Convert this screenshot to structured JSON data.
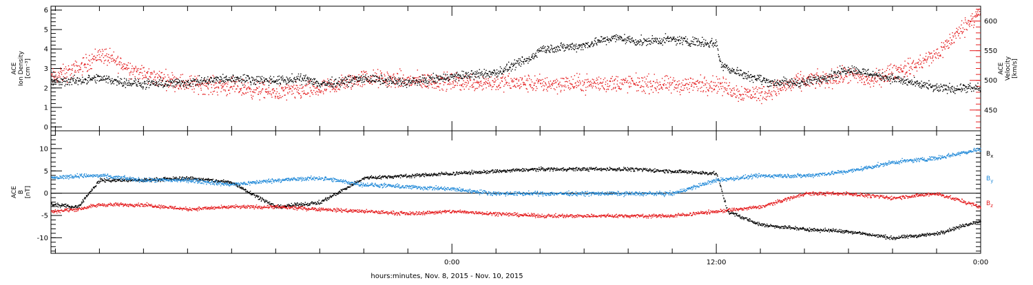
{
  "colors": {
    "black": "#000000",
    "blue": "#1e88d8",
    "red": "#e41a1c"
  },
  "xaxis": {
    "title": "hours:minutes, Nov.  8, 2015 - Nov. 10, 2015",
    "range_hours": [
      -18.2,
      24
    ],
    "ticks": [
      {
        "h": 0,
        "label": "0:00"
      },
      {
        "h": 12,
        "label": "12:00"
      },
      {
        "h": 24,
        "label": "0:00"
      }
    ],
    "minor_tick_every_hours": 2
  },
  "chart_data": [
    {
      "type": "scatter",
      "panel": "top",
      "left_axis": {
        "title_lines": [
          "ACE",
          "Ion Density",
          "[cm⁻³]"
        ],
        "ylim": [
          -0.2,
          6.2
        ],
        "ticks": [
          0,
          1,
          2,
          3,
          4,
          5,
          6
        ],
        "color": "#000000"
      },
      "right_axis": {
        "title_lines": [
          "ACE",
          "Velocity",
          "[km/s]"
        ],
        "ylim": [
          415,
          625
        ],
        "ticks": [
          450,
          500,
          550,
          600
        ],
        "color": "#e41a1c"
      },
      "series": [
        {
          "axis": "left",
          "color": "#000000",
          "spread": 0.35,
          "x": [
            -18.2,
            -16,
            -14,
            -12,
            -10,
            -8,
            -6.5,
            -6,
            -4,
            -2,
            0,
            2,
            3.5,
            4,
            6,
            6.5,
            7,
            7.5,
            8,
            8.5,
            10,
            12,
            12.2,
            13,
            14.5,
            16,
            17,
            18,
            20,
            22,
            24
          ],
          "y": [
            2.3,
            2.5,
            2.2,
            2.3,
            2.5,
            2.4,
            2.5,
            2.2,
            2.5,
            2.3,
            2.6,
            2.8,
            3.5,
            4.0,
            4.2,
            4.4,
            4.5,
            4.6,
            4.5,
            4.4,
            4.5,
            4.3,
            3.2,
            2.8,
            2.3,
            2.3,
            2.6,
            3.0,
            2.5,
            2.0,
            2.0
          ]
        },
        {
          "axis": "right",
          "color": "#e41a1c",
          "spread": 22,
          "x": [
            -18.2,
            -17,
            -16,
            -14,
            -12,
            -10,
            -8,
            -6,
            -4,
            -2,
            0,
            2,
            4,
            6,
            8,
            10,
            12,
            13,
            14,
            15,
            16,
            17,
            18,
            19,
            20,
            21,
            22,
            24
          ],
          "y": [
            505,
            520,
            545,
            510,
            495,
            490,
            480,
            485,
            505,
            500,
            498,
            497,
            495,
            495,
            496,
            492,
            495,
            480,
            478,
            490,
            500,
            502,
            510,
            500,
            515,
            525,
            545,
            620
          ]
        }
      ]
    },
    {
      "type": "scatter",
      "panel": "bottom",
      "left_axis": {
        "title_lines": [
          "ACE",
          "B",
          "[nT]"
        ],
        "ylim": [
          -13.5,
          14
        ],
        "ticks": [
          -10,
          -5,
          0,
          5,
          10
        ],
        "color": "#000000"
      },
      "zero_line": true,
      "legend": [
        {
          "text": "B",
          "sub": "x",
          "color": "#000000"
        },
        {
          "text": "B",
          "sub": "y",
          "color": "#1e88d8"
        },
        {
          "text": "B",
          "sub": "z",
          "color": "#e41a1c"
        }
      ],
      "series": [
        {
          "name": "Bx",
          "color": "#000000",
          "spread": 0.6,
          "x": [
            -18.2,
            -17,
            -16,
            -14,
            -12,
            -10,
            -8,
            -6,
            -4,
            -2,
            0,
            2,
            4,
            6,
            8,
            10,
            12,
            12.5,
            13,
            14,
            16,
            18,
            20,
            22,
            24
          ],
          "y": [
            -2.5,
            -3,
            3,
            3,
            3.5,
            2.5,
            -3,
            -2,
            3.5,
            4,
            4.5,
            5,
            5.5,
            5.5,
            5.5,
            5,
            4.5,
            -4,
            -5,
            -7,
            -8,
            -8.5,
            -10,
            -9,
            -6
          ]
        },
        {
          "name": "By",
          "color": "#1e88d8",
          "spread": 0.7,
          "x": [
            -18.2,
            -17,
            -16,
            -14,
            -12,
            -10,
            -8,
            -6,
            -4,
            -2,
            0,
            2,
            4,
            6,
            8,
            10,
            12,
            14,
            16,
            18,
            20,
            22,
            24
          ],
          "y": [
            3.5,
            4,
            4,
            3,
            3,
            2,
            3,
            3.5,
            2,
            1.5,
            1,
            0,
            0,
            0,
            0,
            0,
            3,
            4,
            4,
            5,
            7,
            8,
            10
          ]
        },
        {
          "name": "Bz",
          "color": "#e41a1c",
          "spread": 0.6,
          "x": [
            -18.2,
            -17,
            -16,
            -14,
            -12,
            -10,
            -8,
            -6,
            -4,
            -2,
            0,
            2,
            4,
            6,
            8,
            10,
            12,
            14,
            16,
            18,
            20,
            22,
            24
          ],
          "y": [
            -4,
            -3.5,
            -2.5,
            -2.5,
            -3.5,
            -3,
            -3,
            -3.5,
            -4,
            -4.5,
            -4,
            -4.5,
            -5,
            -5,
            -5,
            -5,
            -4,
            -3,
            0,
            0,
            -1,
            0,
            -3
          ]
        }
      ]
    }
  ]
}
